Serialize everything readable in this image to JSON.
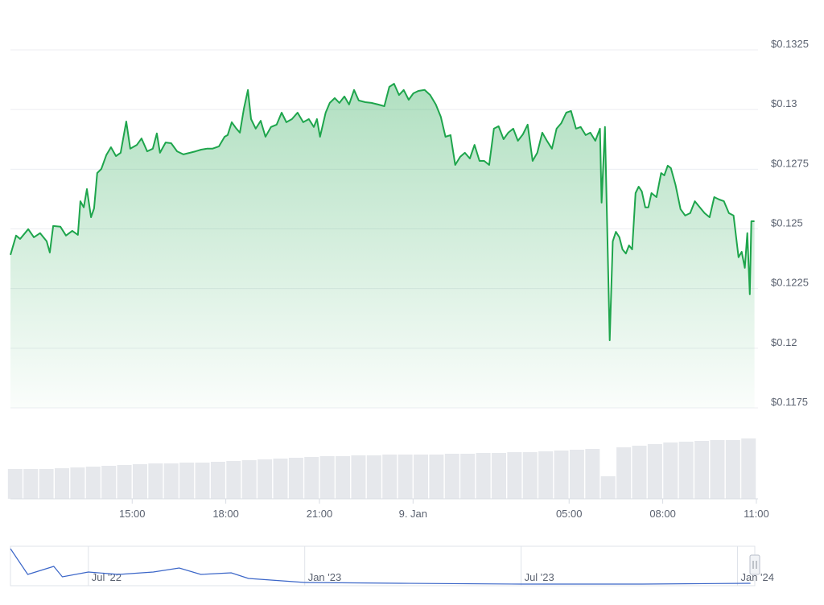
{
  "chart_data": {
    "type": "line",
    "color": "#1ea54c",
    "x": [
      11.1,
      11.28,
      11.41,
      11.67,
      11.85,
      12.05,
      12.26,
      12.36,
      12.47,
      12.7,
      12.88,
      13.08,
      13.26,
      13.34,
      13.45,
      13.55,
      13.68,
      13.78,
      13.88,
      14.01,
      14.17,
      14.32,
      14.48,
      14.63,
      14.81,
      14.94,
      15.15,
      15.3,
      15.48,
      15.66,
      15.79,
      15.89,
      16.07,
      16.25,
      16.44,
      16.64,
      16.85,
      17.03,
      17.21,
      17.39,
      17.57,
      17.78,
      17.96,
      18.06,
      18.19,
      18.34,
      18.45,
      18.58,
      18.71,
      18.81,
      18.96,
      19.12,
      19.27,
      19.45,
      19.63,
      19.79,
      19.94,
      20.12,
      20.3,
      20.48,
      20.66,
      20.82,
      20.92,
      21.02,
      21.2,
      21.33,
      21.49,
      21.64,
      21.8,
      21.95,
      22.11,
      22.26,
      22.47,
      22.67,
      22.88,
      23.08,
      23.24,
      23.39,
      23.55,
      23.7,
      23.86,
      24.01,
      24.17,
      24.37,
      24.55,
      24.73,
      24.89,
      25.04,
      25.2,
      25.35,
      25.51,
      25.66,
      25.82,
      25.97,
      26.13,
      26.28,
      26.44,
      26.59,
      26.74,
      26.9,
      27.05,
      27.21,
      27.36,
      27.52,
      27.67,
      27.83,
      27.98,
      28.14,
      28.29,
      28.45,
      28.6,
      28.75,
      28.91,
      29.06,
      29.22,
      29.37,
      29.53,
      29.68,
      29.84,
      29.99,
      30.04,
      30.15,
      30.3,
      30.4,
      30.5,
      30.61,
      30.71,
      30.82,
      30.92,
      31.02,
      31.13,
      31.23,
      31.33,
      31.44,
      31.54,
      31.64,
      31.8,
      31.95,
      32.05,
      32.16,
      32.26,
      32.41,
      32.57,
      32.72,
      32.88,
      33.03,
      33.19,
      33.34,
      33.5,
      33.65,
      33.81,
      33.96,
      34.12,
      34.27,
      34.43,
      34.53,
      34.63,
      34.71,
      34.79,
      34.84,
      34.94
    ],
    "values": [
      0.12391,
      0.12472,
      0.12458,
      0.12499,
      0.12465,
      0.12482,
      0.12448,
      0.12401,
      0.12512,
      0.12509,
      0.12472,
      0.12492,
      0.12475,
      0.12616,
      0.1259,
      0.12667,
      0.12549,
      0.12586,
      0.12734,
      0.12751,
      0.12809,
      0.12842,
      0.12805,
      0.12819,
      0.1295,
      0.12836,
      0.12852,
      0.12879,
      0.12825,
      0.12836,
      0.129,
      0.12819,
      0.12862,
      0.12859,
      0.12825,
      0.12812,
      0.12819,
      0.12825,
      0.12832,
      0.12836,
      0.12836,
      0.12846,
      0.12886,
      0.12893,
      0.12947,
      0.1292,
      0.12903,
      0.13004,
      0.13082,
      0.1296,
      0.1292,
      0.12953,
      0.12886,
      0.12927,
      0.12937,
      0.12987,
      0.12947,
      0.1296,
      0.12987,
      0.12947,
      0.1296,
      0.12927,
      0.1296,
      0.12886,
      0.12987,
      0.13028,
      0.13048,
      0.13028,
      0.13055,
      0.13021,
      0.13082,
      0.13038,
      0.13031,
      0.13028,
      0.13021,
      0.13014,
      0.13095,
      0.13108,
      0.13061,
      0.13082,
      0.13041,
      0.13068,
      0.13078,
      0.13082,
      0.13061,
      0.13021,
      0.1297,
      0.12886,
      0.12893,
      0.12768,
      0.12802,
      0.12819,
      0.12795,
      0.12852,
      0.12785,
      0.12785,
      0.12768,
      0.1292,
      0.1293,
      0.12876,
      0.12903,
      0.1292,
      0.12869,
      0.12896,
      0.12937,
      0.12785,
      0.12819,
      0.12903,
      0.12869,
      0.12836,
      0.1292,
      0.12943,
      0.12987,
      0.12994,
      0.1292,
      0.12927,
      0.12893,
      0.12903,
      0.12869,
      0.1292,
      0.1261,
      0.12927,
      0.12033,
      0.12448,
      0.12488,
      0.12465,
      0.12414,
      0.12397,
      0.12431,
      0.12414,
      0.1265,
      0.12677,
      0.12657,
      0.1259,
      0.1259,
      0.1265,
      0.12633,
      0.12734,
      0.12724,
      0.12765,
      0.12755,
      0.12684,
      0.12583,
      0.12556,
      0.12566,
      0.12616,
      0.1259,
      0.12566,
      0.12549,
      0.12633,
      0.12623,
      0.12616,
      0.12566,
      0.12556,
      0.12381,
      0.12404,
      0.12337,
      0.12482,
      0.12226,
      0.12532,
      0.12532
    ],
    "xlim": [
      11.1,
      34.95
    ],
    "xticks": [
      {
        "value": 15,
        "label": "15:00"
      },
      {
        "value": 18,
        "label": "18:00"
      },
      {
        "value": 21,
        "label": "21:00"
      },
      {
        "value": 24,
        "label": "9. Jan"
      },
      {
        "value": 29,
        "label": "05:00"
      },
      {
        "value": 32,
        "label": "08:00"
      },
      {
        "value": 35,
        "label": "11:00"
      }
    ],
    "ylim": [
      0.1175,
      0.1325
    ],
    "yticks": [
      {
        "value": 0.1325,
        "label": "$0.1325"
      },
      {
        "value": 0.13,
        "label": "$0.13"
      },
      {
        "value": 0.1275,
        "label": "$0.1275"
      },
      {
        "value": 0.125,
        "label": "$0.125"
      },
      {
        "value": 0.1225,
        "label": "$0.1225"
      },
      {
        "value": 0.12,
        "label": "$0.12"
      },
      {
        "value": 0.1175,
        "label": "$0.1175"
      }
    ],
    "grid": true,
    "volume": {
      "color": "#e6e8ec",
      "x": [
        11.25,
        11.75,
        12.25,
        12.75,
        13.25,
        13.75,
        14.25,
        14.75,
        15.25,
        15.75,
        16.25,
        16.75,
        17.25,
        17.75,
        18.25,
        18.75,
        19.25,
        19.75,
        20.25,
        20.75,
        21.25,
        21.75,
        22.25,
        22.75,
        23.25,
        23.75,
        24.25,
        24.75,
        25.25,
        25.75,
        26.25,
        26.75,
        27.25,
        27.75,
        28.25,
        28.75,
        29.25,
        29.75,
        30.25,
        30.75,
        31.25,
        31.75,
        32.25,
        32.75,
        33.25,
        33.75,
        34.25,
        34.75
      ],
      "values": [
        37,
        37,
        37,
        38,
        39,
        40,
        41,
        42,
        43,
        44,
        44,
        45,
        45,
        46,
        47,
        48,
        49,
        50,
        51,
        52,
        53,
        53,
        54,
        54,
        55,
        55,
        55,
        55,
        56,
        56,
        57,
        57,
        58,
        58,
        59,
        60,
        61,
        62,
        28,
        64,
        66,
        68,
        70,
        71,
        72,
        73,
        73,
        75
      ]
    },
    "navigator": {
      "color": "#3b66c8",
      "x": [
        2022.32,
        2022.36,
        2022.42,
        2022.44,
        2022.5,
        2022.57,
        2022.65,
        2022.71,
        2022.76,
        2022.83,
        2022.87,
        2023.0,
        2023.22,
        2023.5,
        2023.78,
        2024.03
      ],
      "values": [
        44,
        12,
        22,
        9,
        15,
        12,
        15,
        20,
        12,
        14,
        7,
        2,
        1,
        0,
        0,
        1
      ],
      "xlim": [
        2022.32,
        2024.04
      ],
      "xticks": [
        {
          "value": 2022.5,
          "label": "Jul '22"
        },
        {
          "value": 2023.0,
          "label": "Jan '23"
        },
        {
          "value": 2023.5,
          "label": "Jul '23"
        },
        {
          "value": 2024.0,
          "label": "Jan '24"
        }
      ]
    }
  }
}
